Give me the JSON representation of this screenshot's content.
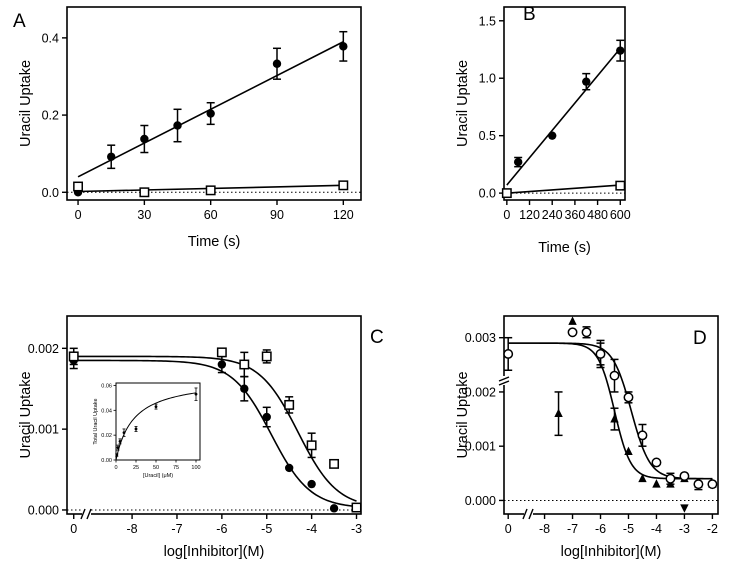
{
  "chart_data": [
    {
      "panel": "A",
      "type": "scatter",
      "ylabel": "Uracil Uptake",
      "xlabel": "Time (s)",
      "xlim": [
        -5,
        128
      ],
      "ylim": [
        -0.02,
        0.48
      ],
      "xticks": [
        0,
        30,
        60,
        90,
        120
      ],
      "yticks": [
        0.0,
        0.2,
        0.4
      ],
      "ytick_labels": [
        "0.0",
        "0.2",
        "0.4"
      ],
      "series": [
        {
          "name": "filled",
          "marker": "circle-filled",
          "x": [
            0,
            15,
            30,
            45,
            60,
            90,
            120
          ],
          "y": [
            0.0,
            0.092,
            0.138,
            0.173,
            0.204,
            0.333,
            0.378
          ],
          "err": [
            0.0,
            0.03,
            0.035,
            0.042,
            0.028,
            0.04,
            0.038
          ],
          "fit": {
            "kind": "linear",
            "x0": 0,
            "y0": 0.04,
            "x1": 120,
            "y1": 0.39
          }
        },
        {
          "name": "open",
          "marker": "square-open",
          "x": [
            0,
            30,
            60,
            120
          ],
          "y": [
            0.015,
            0.0,
            0.005,
            0.018
          ],
          "err": [
            0,
            0,
            0,
            0
          ],
          "fit": {
            "kind": "linear",
            "x0": 0,
            "y0": 0.002,
            "x1": 120,
            "y1": 0.018
          }
        }
      ]
    },
    {
      "panel": "B",
      "type": "scatter",
      "ylabel": "Uracil Uptake",
      "xlabel": "Time (s)",
      "xlim": [
        -15,
        625
      ],
      "ylim": [
        -0.06,
        1.62
      ],
      "xticks": [
        0,
        120,
        240,
        360,
        480,
        600
      ],
      "yticks": [
        0.0,
        0.5,
        1.0,
        1.5
      ],
      "ytick_labels": [
        "0.0",
        "0.5",
        "1.0",
        "1.5"
      ],
      "series": [
        {
          "name": "filled",
          "marker": "circle-filled",
          "x": [
            0,
            60,
            240,
            420,
            600
          ],
          "y": [
            0.0,
            0.27,
            0.5,
            0.97,
            1.24
          ],
          "err": [
            0.0,
            0.04,
            0.0,
            0.07,
            0.09
          ],
          "fit": {
            "kind": "linear",
            "x0": 0,
            "y0": 0.07,
            "x1": 600,
            "y1": 1.26
          }
        },
        {
          "name": "open",
          "marker": "square-open",
          "x": [
            0,
            600
          ],
          "y": [
            0.0,
            0.065
          ],
          "err": [
            0,
            0
          ],
          "fit": {
            "kind": "linear",
            "x0": 0,
            "y0": 0.0,
            "x1": 600,
            "y1": 0.07
          }
        }
      ]
    },
    {
      "panel": "C",
      "type": "scatter",
      "ylabel": "Uracil Uptake",
      "xlabel": "log[Inhibitor](M)",
      "xlim": [
        -9.45,
        -2.9
      ],
      "ylim": [
        -5e-05,
        0.0024
      ],
      "xticks": [
        -8,
        -7,
        -6,
        -5,
        -4,
        -3
      ],
      "zero_label": "0",
      "yticks": [
        0.0,
        0.001,
        0.002
      ],
      "ytick_labels": [
        "0.000",
        "0.001",
        "0.002"
      ],
      "series": [
        {
          "name": "filled",
          "marker": "circle-filled",
          "x": [
            -9.3,
            -6,
            -5.5,
            -5,
            -4.5,
            -4,
            -3.5,
            -3
          ],
          "y": [
            0.00185,
            0.0018,
            0.0015,
            0.00115,
            0.00052,
            0.00032,
            2e-05,
            3e-05
          ],
          "err": [
            0.0001,
            0.0001,
            0.00015,
            0.00012,
            0.0,
            0.0,
            0.0,
            0.0
          ],
          "fit": {
            "kind": "sigmoid",
            "top": 0.00185,
            "bottom": 2e-05,
            "logec50": -4.9,
            "hill": 1.0
          }
        },
        {
          "name": "open",
          "marker": "square-open",
          "x": [
            -9.3,
            -6,
            -5.5,
            -5,
            -4.5,
            -4,
            -3.5,
            -3
          ],
          "y": [
            0.0019,
            0.00195,
            0.0018,
            0.0019,
            0.0013,
            0.0008,
            0.00057,
            3e-05
          ],
          "err": [
            0.0001,
            0.0,
            0.00015,
            8e-05,
            0.0001,
            0.00015,
            0.0,
            0.0
          ],
          "fit": {
            "kind": "sigmoid",
            "top": 0.0019,
            "bottom": 2e-05,
            "logec50": -4.3,
            "hill": 1.0
          }
        }
      ],
      "inset": {
        "type": "scatter",
        "ylabel": "Total Uracil Uptake",
        "xlabel": "[Uracil] (μM)",
        "xlim": [
          0,
          105
        ],
        "ylim": [
          0,
          0.062
        ],
        "xticks": [
          0,
          25,
          50,
          75,
          100
        ],
        "yticks": [
          0.0,
          0.02,
          0.04,
          0.06
        ],
        "ytick_labels": [
          "0.00",
          "0.02",
          "0.04",
          "0.06"
        ],
        "x": [
          1,
          2.5,
          5,
          10,
          25,
          50,
          100
        ],
        "y": [
          0.004,
          0.01,
          0.015,
          0.022,
          0.025,
          0.043,
          0.053
        ],
        "err": [
          0.001,
          0.002,
          0.002,
          0.003,
          0.002,
          0.002,
          0.005
        ],
        "fit": {
          "kind": "michaelis-menten",
          "vmax": 0.066,
          "km": 22
        }
      }
    },
    {
      "panel": "D",
      "type": "scatter",
      "ylabel": "Uracil Uptake",
      "xlabel": "log[Inhibitor](M)",
      "xlim": [
        -9.45,
        -1.8
      ],
      "ylim": [
        -0.00025,
        0.0034
      ],
      "xticks": [
        -8,
        -7,
        -6,
        -5,
        -4,
        -3,
        -2
      ],
      "zero_label": "0",
      "yticks": [
        0.0,
        0.001,
        0.002,
        0.003
      ],
      "ytick_labels": [
        "0.000",
        "0.001",
        "0.002",
        "0.003"
      ],
      "series": [
        {
          "name": "filled",
          "marker": "triangle-filled",
          "x": [
            -7.5,
            -7,
            -6,
            -5.5,
            -5,
            -4.5,
            -4,
            -3.5,
            -3,
            -2.5,
            -2
          ],
          "y": [
            0.0016,
            0.0033,
            0.0027,
            0.0015,
            0.0009,
            0.0004,
            0.0003,
            0.0003,
            0.0004,
            0.0003,
            0.0003
          ],
          "err": [
            0.0004,
            0.0,
            0.0002,
            0.0002,
            0.0,
            0.0,
            0.0,
            0.0,
            0.0,
            0.0,
            0.0
          ],
          "fit": {
            "kind": "sigmoid",
            "top": 0.0029,
            "bottom": 0.0004,
            "logec50": -5.5,
            "hill": 1.5
          }
        },
        {
          "name": "open",
          "marker": "circle-open",
          "x": [
            -9.3,
            -7,
            -6.5,
            -6,
            -5.5,
            -5,
            -4.5,
            -4,
            -3.5,
            -3,
            -2.5,
            -2
          ],
          "y": [
            0.0027,
            0.0031,
            0.0031,
            0.0027,
            0.0023,
            0.0019,
            0.0012,
            0.0007,
            0.0004,
            0.00045,
            0.0003,
            0.0003
          ],
          "err": [
            0.0003,
            0.0,
            0.0001,
            0.00025,
            0.0003,
            0.0001,
            0.0002,
            0.0,
            0.0001,
            0.0,
            0.0001,
            0.0
          ],
          "fit": {
            "kind": "sigmoid",
            "top": 0.0029,
            "bottom": 0.0004,
            "logec50": -4.9,
            "hill": 1.3
          }
        },
        {
          "name": "inverted",
          "marker": "triangle-down-filled",
          "x": [
            -3
          ],
          "y": [
            -0.00015
          ],
          "err": [
            0
          ],
          "fit": null
        }
      ]
    }
  ]
}
